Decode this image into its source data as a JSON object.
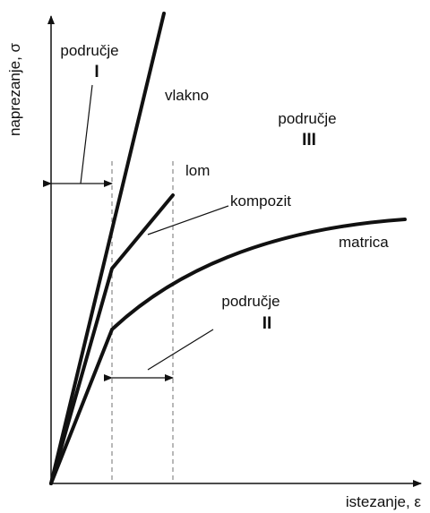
{
  "axes": {
    "y_label": "naprezanje, σ",
    "x_label": "istezanje, ε"
  },
  "regions": [
    {
      "title": "područje",
      "number": "I"
    },
    {
      "title": "područje",
      "number": "II"
    },
    {
      "title": "područje",
      "number": "III"
    }
  ],
  "curves": {
    "fiber": "vlakno",
    "composite": "kompozit",
    "matrix": "matrica",
    "failure": "lom"
  }
}
